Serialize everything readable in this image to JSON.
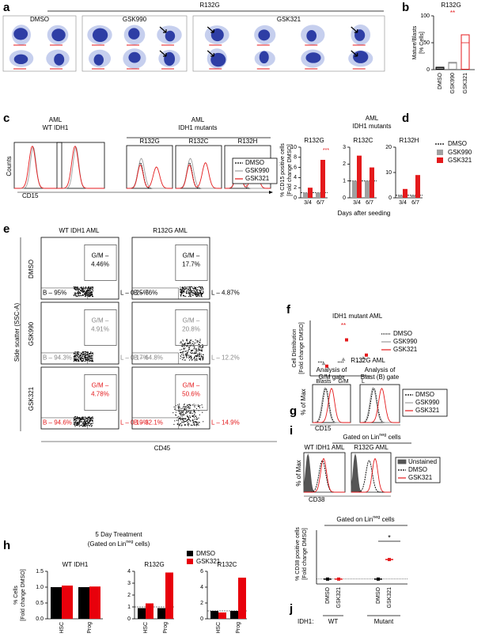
{
  "a": {
    "label": "a",
    "title": "R132G",
    "groups": [
      "DMSO",
      "GSK990",
      "GSK321"
    ]
  },
  "b": {
    "label": "b",
    "title": "R132G",
    "ylabel": [
      "Mature/Blasts",
      "[% Cells]"
    ],
    "categories": [
      "DMSO",
      "GSK990",
      "GSK321"
    ],
    "values": [
      3,
      12,
      50
    ],
    "colors": [
      "#000000",
      "#888888",
      "#e41a1c"
    ],
    "ylim": [
      0,
      100
    ],
    "yticks": [
      0,
      50,
      100
    ],
    "annotation": "**"
  },
  "c": {
    "label": "c",
    "wt_title": [
      "AML",
      "WT IDH1"
    ],
    "mut_title": [
      "AML",
      "IDH1 mutants"
    ],
    "mutants": [
      "R132G",
      "R132C",
      "R132H"
    ],
    "ylabel": "Counts",
    "xlabel": "CD15",
    "legend": [
      "DMSO",
      "GSK990",
      "GSK321"
    ]
  },
  "d": {
    "label": "d",
    "title": [
      "AML",
      "IDH1 mutants"
    ],
    "ylabel": [
      "% CD15 positive cells",
      "[Fold change DMSO]"
    ],
    "xlabel": "Days after seeding",
    "reference": {
      "name": "DMSO",
      "value": 1
    },
    "annotation": "***",
    "series": [
      {
        "name": "GSK990",
        "color": "#a0a0a0"
      },
      {
        "name": "GSK321",
        "color": "#e41a1c"
      }
    ],
    "charts": [
      {
        "title": "R132G",
        "categories": [
          "3/4",
          "6/7"
        ],
        "ylim": [
          0,
          10
        ],
        "yticks": [
          0,
          2,
          4,
          6,
          8,
          10
        ],
        "values": [
          [
            1,
            1
          ],
          [
            2,
            7.5
          ]
        ]
      },
      {
        "title": "R132C",
        "categories": [
          "3/4",
          "6/7"
        ],
        "ylim": [
          0,
          3
        ],
        "yticks": [
          0,
          1,
          2,
          3
        ],
        "values": [
          [
            1,
            1
          ],
          [
            2.5,
            1.8
          ]
        ]
      },
      {
        "title": "R132H",
        "categories": [
          "3/4",
          "6/7"
        ],
        "ylim": [
          0,
          20
        ],
        "yticks": [
          0,
          10,
          20
        ],
        "values": [
          [
            1,
            1
          ],
          [
            3.5,
            9
          ]
        ]
      }
    ]
  },
  "e": {
    "label": "e",
    "columns": [
      "WT IDH1 AML",
      "R132G AML"
    ],
    "rows": [
      "DMSO",
      "GSK990",
      "GSK321"
    ],
    "ylabel": "Side scatter (SSC-A)",
    "xlabel": "CD45",
    "gates": [
      [
        {
          "gm": [
            "G/M –",
            "4.46%"
          ],
          "b": "B – 95%",
          "l": "L – 0.25%"
        },
        {
          "gm": [
            "G/M –",
            "17.7%"
          ],
          "b": "B – 76%",
          "l": "L – 4.87%"
        }
      ],
      [
        {
          "gm": [
            "G/M –",
            "4.91%"
          ],
          "b": "B – 94.3%",
          "l": "L – 0.17%"
        },
        {
          "gm": [
            "G/M –",
            "20.8%"
          ],
          "b": "B – 64.8%",
          "l": "L – 12.2%"
        }
      ],
      [
        {
          "gm": [
            "G/M –",
            "4.78%"
          ],
          "b": "B – 94.6%",
          "l": "L – 0.19%"
        },
        {
          "gm": [
            "G/M –",
            "50.6%"
          ],
          "b": "B – 32.1%",
          "l": "L – 14.9%"
        }
      ]
    ]
  },
  "f": {
    "label": "f",
    "title": "IDH1 mutant AML",
    "ylabel": [
      "Cell Distribution",
      "[Fold change DMSO]"
    ],
    "categories": [
      "Blasts",
      "G/M",
      "L"
    ],
    "ylim": [
      0,
      4
    ],
    "annotation": "**",
    "series": [
      {
        "name": "DMSO",
        "color": "#000000",
        "values": [
          1,
          1,
          1
        ]
      },
      {
        "name": "GSK990",
        "color": "#999999",
        "values": [
          0.9,
          1.2,
          1.3
        ]
      },
      {
        "name": "GSK321",
        "color": "#e41a1c",
        "values": [
          0.7,
          2.6,
          1.5
        ]
      }
    ]
  },
  "g": {
    "label": "g",
    "title": "R132G AML",
    "panels": [
      [
        "Analysis of",
        "G/M gate"
      ],
      [
        "Analysis of",
        "Blast (B) gate"
      ]
    ],
    "ylabel": "% of Max",
    "xlabel": "CD15",
    "legend": [
      "DMSO",
      "GSK990",
      "GSK321"
    ]
  },
  "h": {
    "label": "h",
    "title": "5 Day Treatment",
    "subtitle": [
      "(Gated on Lin",
      "neg",
      " cells)"
    ],
    "ylabel": [
      "% Cells",
      "[Fold change DMSO]"
    ],
    "series": [
      {
        "name": "DMSO",
        "color": "#000000"
      },
      {
        "name": "GSK321",
        "color": "#e8000b"
      }
    ],
    "charts": [
      {
        "title": "WT IDH1",
        "categories": [
          "HSC",
          "Prog"
        ],
        "ylim": [
          0,
          1.5
        ],
        "yticks": [
          {
            "value": 0,
            "label": "0.0"
          },
          {
            "value": 0.5,
            "label": "0.5"
          },
          {
            "value": 1,
            "label": "1.0"
          },
          {
            "value": 1.5,
            "label": "1.5"
          }
        ],
        "values": [
          [
            1,
            1
          ],
          [
            1.05,
            1.02
          ]
        ]
      },
      {
        "title": "R132G",
        "categories": [
          "HSC",
          "Prog"
        ],
        "ylim": [
          0,
          4
        ],
        "yticks": [
          0,
          1,
          2,
          3,
          4
        ],
        "reference": 1,
        "values": [
          [
            0.9,
            0.9
          ],
          [
            1.3,
            3.9
          ]
        ]
      },
      {
        "title": "R132C",
        "categories": [
          "HSC",
          "Prog"
        ],
        "ylim": [
          0,
          6
        ],
        "yticks": [
          0,
          2,
          4,
          6
        ],
        "reference": 1,
        "values": [
          [
            1,
            1
          ],
          [
            0.8,
            5.2
          ]
        ]
      }
    ]
  },
  "i": {
    "label": "i",
    "title": [
      "Gated on Lin",
      "neg",
      " cells"
    ],
    "panels": [
      "WT IDH1 AML",
      "R132G AML"
    ],
    "ylabel": "% of Max",
    "xlabel": "CD38",
    "legend": [
      "Unstained",
      "DMSO",
      "GSK321"
    ]
  },
  "j": {
    "label": "j",
    "title": [
      "Gated on Lin",
      "neg",
      " cells"
    ],
    "ylabel": [
      "% CD38 positive cells",
      "[Fold change DMSO]"
    ],
    "categories": [
      "DMSO",
      "GSK321",
      "DMSO",
      "GSK321"
    ],
    "values": [
      1,
      1,
      1,
      5
    ],
    "colors": [
      "#000000",
      "#e41a1c",
      "#000000",
      "#e41a1c"
    ],
    "ylim": [
      0,
      11
    ],
    "row_label": "IDH1:",
    "groups": [
      "WT",
      "Mutant"
    ],
    "annotation": "*"
  }
}
